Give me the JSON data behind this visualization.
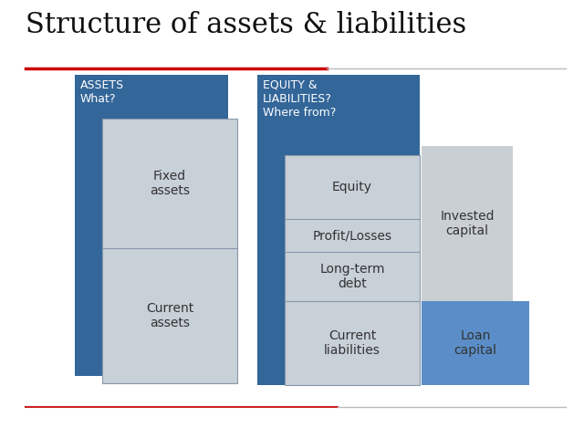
{
  "title": "Structure of assets & liabilities",
  "title_fontsize": 22,
  "bg_color": "#ffffff",
  "title_underline_color_red": "#cc0000",
  "colors": {
    "dark_blue": "#336699",
    "light_gray": "#C8D0D8",
    "silver_gray": "#D4DCE4",
    "blue_accent": "#5B8EC8",
    "invested_gray": "#CACFD4"
  },
  "assets_header": "ASSETS\nWhat?",
  "equity_header": "EQUITY &\nLIABILITIES?\nWhere from?",
  "fixed_assets_label": "Fixed\nassets",
  "current_assets_label": "Current\nassets",
  "equity_label": "Equity",
  "profit_losses_label": "Profit/Losses",
  "long_term_debt_label": "Long-term\ndebt",
  "current_liabilities_label": "Current\nliabilities",
  "invested_capital_label": "Invested\ncapital",
  "loan_capital_label": "Loan\ncapital"
}
